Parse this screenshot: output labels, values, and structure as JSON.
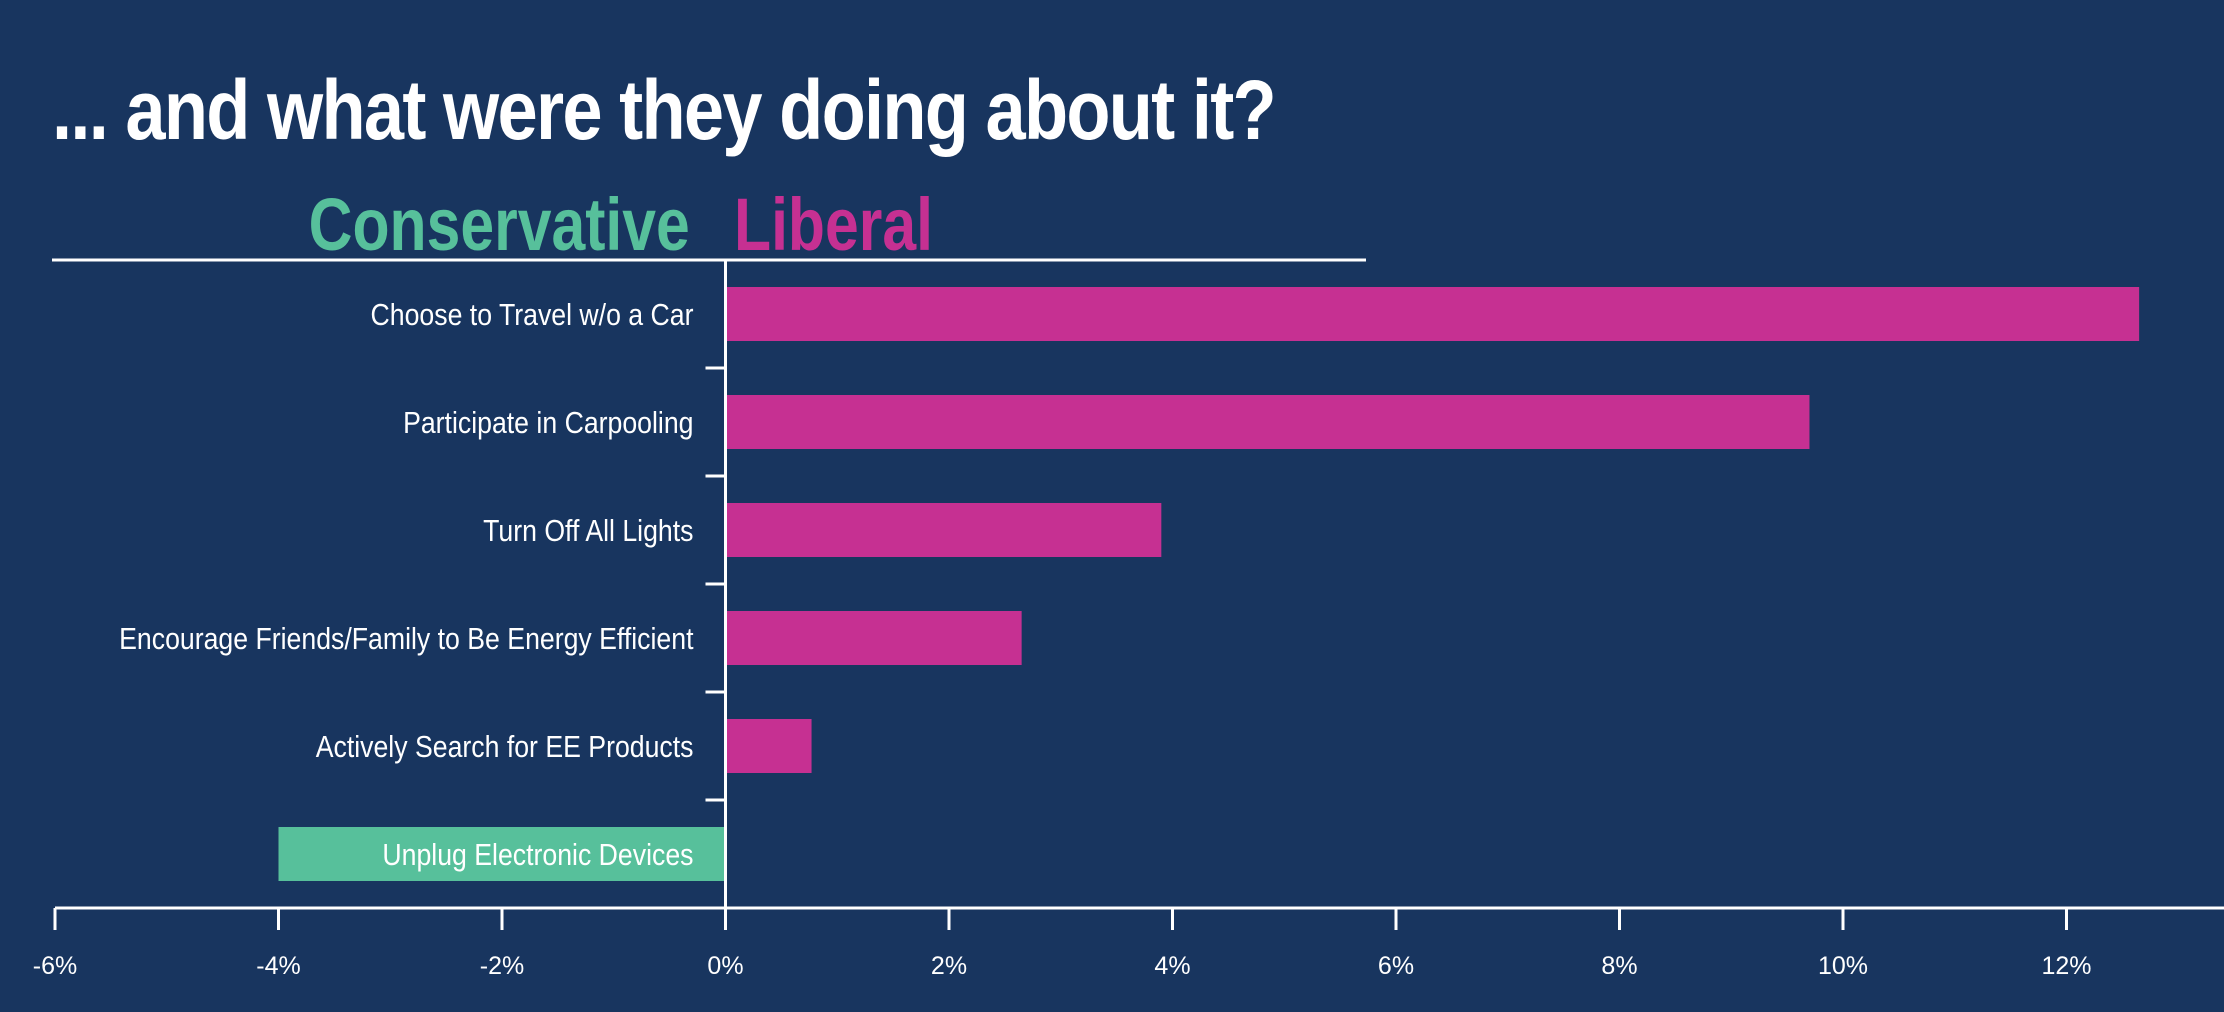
{
  "title": "... and what were they doing about it?",
  "legend": {
    "conservative": "Conservative",
    "liberal": "Liberal"
  },
  "colors": {
    "background": "#18355f",
    "conservative": "#57c09b",
    "liberal": "#c63092",
    "axis": "#ffffff"
  },
  "chart_data": {
    "type": "bar",
    "orientation": "horizontal",
    "title": "... and what were they doing about it?",
    "categories": [
      "Choose to Travel w/o a Car",
      "Participate in Carpooling",
      "Turn Off All Lights",
      "Encourage Friends/Family to Be Energy Efficient",
      "Actively Search for EE Products",
      "Unplug Electronic Devices"
    ],
    "values": [
      12.65,
      9.7,
      3.9,
      2.65,
      0.77,
      -4.0
    ],
    "xlim": [
      -6,
      13.5
    ],
    "xticks": [
      -6,
      -4,
      -2,
      0,
      2,
      4,
      6,
      8,
      10,
      12
    ],
    "xtick_labels": [
      "-6%",
      "-4%",
      "-2%",
      "0%",
      "2%",
      "4%",
      "6%",
      "8%",
      "10%",
      "12%"
    ],
    "negative_label": "Conservative",
    "positive_label": "Liberal",
    "grid": false
  }
}
